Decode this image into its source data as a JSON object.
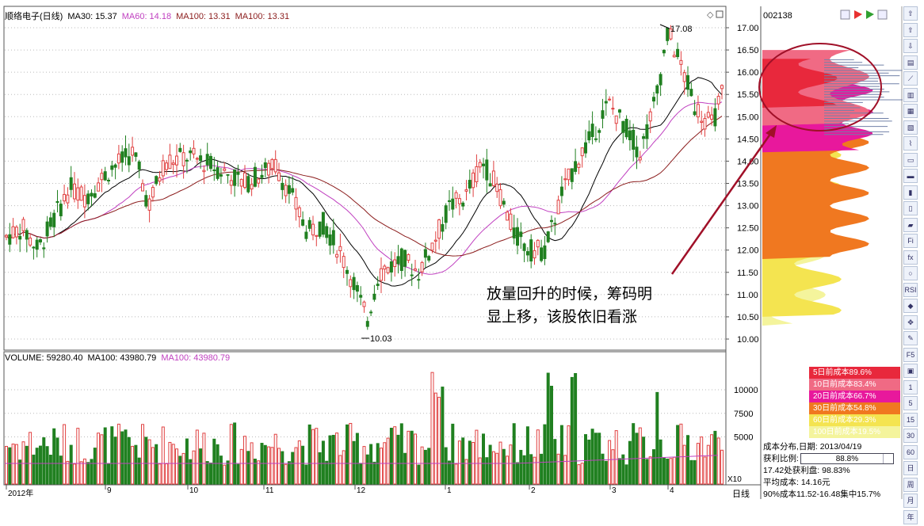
{
  "header": {
    "stock_name": "顺络电子(日线)",
    "ma30": "MA30: 15.37",
    "ma60": "MA60: 14.18",
    "ma100": "MA100: 13.31",
    "ma100b": "MA100: 13.31"
  },
  "volume_header": {
    "volume": "VOLUME: 59280.40",
    "ma100": "MA100: 43980.79",
    "ma100b": "MA100: 43980.79"
  },
  "stock_code": "002138",
  "price_axis": [
    "17.00",
    "16.50",
    "16.00",
    "15.50",
    "15.00",
    "14.50",
    "14.00",
    "13.50",
    "13.00",
    "12.50",
    "12.00",
    "11.50",
    "11.00",
    "10.50",
    "10.00"
  ],
  "volume_axis": [
    "10000",
    "7500",
    "5000"
  ],
  "volume_unit": "X10",
  "x_labels": [
    "2012年",
    "9",
    "10",
    "11",
    "12",
    "1",
    "2",
    "3",
    "4"
  ],
  "period_label": "日线",
  "high_label": "17.08",
  "low_label": "10.03",
  "annotation": {
    "line1": "放量回升的时候，筹码明",
    "line2": "显上移，该股依旧看涨"
  },
  "legend": [
    {
      "label": "5日前成本89.6%",
      "color": "#e8283c"
    },
    {
      "label": "10日前成本83.4%",
      "color": "#f06a84"
    },
    {
      "label": "20日前成本66.7%",
      "color": "#e8189c"
    },
    {
      "label": "30日前成本54.8%",
      "color": "#f07820"
    },
    {
      "label": "60日前成本29.3%",
      "color": "#f4e450"
    },
    {
      "label": "100日前成本19.5%",
      "color": "#f4f49c"
    }
  ],
  "info": {
    "date_line": "成本分布,日期: 2013/04/19",
    "profit_label": "获利比例:",
    "profit_value": "88.8%",
    "profit_ratio": 0.888,
    "line3": "17.42处获利盘: 98.83%",
    "line4": "平均成本: 14.16元",
    "line5": "90%成本11.52-16.48集中15.7%"
  },
  "toolbar": {
    "items": [
      "⇧",
      "⇧",
      "⇩",
      "▤",
      "⟋",
      "▥",
      "▦",
      "▧",
      "⌇",
      "▭",
      "▬",
      "▮",
      "▯",
      "▰",
      "Fi",
      "fx",
      "○",
      "RSI",
      "◆",
      "✥",
      "✎",
      "F5",
      "▣",
      "1",
      "5",
      "15",
      "30",
      "60",
      "日",
      "周",
      "月",
      "年"
    ]
  },
  "chart_data": {
    "type": "candlestick",
    "price_range": [
      10.0,
      17.0
    ],
    "high": 17.08,
    "low": 10.03,
    "ma_series": [
      "MA30",
      "MA60",
      "MA100",
      "MA100"
    ],
    "volume_range": [
      0,
      12000
    ],
    "volume_ticks": [
      5000,
      7500,
      10000
    ],
    "chip_distribution_legend": [
      "5日前成本89.6%",
      "10日前成本83.4%",
      "20日前成本66.7%",
      "30日前成本54.8%",
      "60日前成本29.3%",
      "100日前成本19.5%"
    ]
  }
}
